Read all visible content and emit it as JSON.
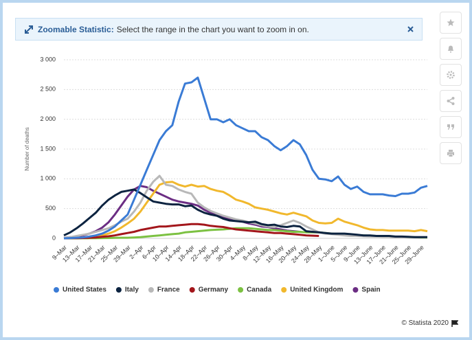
{
  "banner": {
    "title": "Zoomable Statistic:",
    "text": "Select the range in the chart you want to zoom in on."
  },
  "footer": {
    "credit": "© Statista 2020"
  },
  "chart_data": {
    "type": "line",
    "ylabel": "Number of deaths",
    "categories": [
      "9–Mar",
      null,
      "13–Mar",
      null,
      "17–Mar",
      null,
      "21–Mar",
      null,
      "25–Mar",
      null,
      "29–Mar",
      null,
      "2–Apr",
      null,
      "6–Apr",
      null,
      "10–Apr",
      null,
      "14–Apr",
      null,
      "18–Apr",
      null,
      "22–Apr",
      null,
      "26–Apr",
      null,
      "30–Apr",
      null,
      "4–May",
      null,
      "8–May",
      null,
      "12–May",
      null,
      "16–May",
      null,
      "20–May",
      null,
      "24–May",
      null,
      "28–May",
      null,
      "1–June",
      null,
      "5–June",
      null,
      "9–June",
      null,
      "13–June",
      null,
      "17–June",
      null,
      "21–June",
      null,
      "25–June",
      null,
      "29–June",
      null
    ],
    "ylim": [
      0,
      3000
    ],
    "yticks": [
      0,
      500,
      {
        "value": 1000,
        "label": "1 000"
      },
      {
        "value": 1500,
        "label": "1 500"
      },
      {
        "value": 2000,
        "label": "2 000"
      },
      {
        "value": 2500,
        "label": "2 500"
      },
      {
        "value": 3000,
        "label": "3 000"
      }
    ],
    "grid": true,
    "legend": "bottom",
    "series": [
      {
        "name": "United States",
        "color": "#3a7bd5",
        "values": [
          0,
          5,
          10,
          15,
          30,
          50,
          80,
          130,
          200,
          300,
          400,
          650,
          900,
          1150,
          1400,
          1650,
          1800,
          1900,
          2300,
          2600,
          2620,
          2700,
          2350,
          2000,
          2000,
          1950,
          2000,
          1900,
          1850,
          1800,
          1800,
          1700,
          1650,
          1550,
          1480,
          1550,
          1650,
          1580,
          1400,
          1150,
          1000,
          990,
          960,
          1040,
          900,
          830,
          870,
          780,
          740,
          740,
          740,
          720,
          710,
          750,
          750,
          770,
          850,
          880
        ]
      },
      {
        "name": "Italy",
        "color": "#0c2340",
        "values": [
          50,
          100,
          170,
          250,
          340,
          430,
          550,
          650,
          720,
          780,
          800,
          820,
          760,
          690,
          620,
          600,
          580,
          570,
          570,
          540,
          550,
          480,
          430,
          400,
          380,
          330,
          300,
          290,
          280,
          270,
          280,
          240,
          220,
          230,
          200,
          190,
          210,
          200,
          120,
          110,
          100,
          90,
          80,
          80,
          80,
          70,
          60,
          50,
          50,
          40,
          40,
          40,
          30,
          30,
          25,
          20,
          20,
          20
        ]
      },
      {
        "name": "France",
        "color": "#b8b8b8",
        "values": [
          10,
          20,
          40,
          60,
          80,
          110,
          140,
          170,
          220,
          280,
          330,
          450,
          600,
          800,
          950,
          1050,
          900,
          880,
          820,
          780,
          750,
          600,
          520,
          460,
          420,
          380,
          350,
          320,
          300,
          270,
          250,
          220,
          200,
          190,
          220,
          260,
          300,
          260,
          200,
          150,
          100,
          80,
          70,
          60,
          50,
          40,
          40,
          35,
          30,
          30,
          25,
          25,
          20,
          20,
          20,
          20,
          20,
          20
        ]
      },
      {
        "name": "Germany",
        "color": "#a3161b",
        "values": [
          0,
          2,
          4,
          6,
          10,
          15,
          25,
          35,
          50,
          70,
          90,
          110,
          140,
          160,
          180,
          200,
          200,
          210,
          220,
          230,
          240,
          240,
          230,
          210,
          200,
          190,
          170,
          150,
          140,
          130,
          120,
          110,
          100,
          90,
          90,
          80,
          70,
          60,
          50,
          45,
          40,
          null,
          null,
          null,
          null,
          null,
          null,
          null,
          null,
          null,
          null,
          null,
          null,
          null,
          null,
          null,
          null,
          null
        ]
      },
      {
        "name": "Canada",
        "color": "#7cc142",
        "values": [
          0,
          0,
          0,
          1,
          2,
          3,
          5,
          6,
          8,
          10,
          10,
          15,
          20,
          30,
          40,
          50,
          60,
          70,
          80,
          100,
          110,
          120,
          130,
          140,
          145,
          150,
          160,
          170,
          170,
          170,
          160,
          150,
          140,
          140,
          130,
          120,
          110,
          110,
          100,
          100,
          100,
          90,
          80,
          70,
          60,
          60,
          55,
          50,
          45,
          40,
          35,
          30,
          25,
          25,
          20,
          20,
          15,
          15
        ]
      },
      {
        "name": "United Kingdom",
        "color": "#f1b82d",
        "values": [
          0,
          0,
          5,
          10,
          20,
          30,
          50,
          80,
          120,
          180,
          250,
          330,
          450,
          600,
          750,
          900,
          940,
          950,
          900,
          870,
          900,
          870,
          880,
          830,
          800,
          780,
          720,
          650,
          620,
          580,
          520,
          500,
          480,
          450,
          420,
          400,
          430,
          400,
          370,
          300,
          260,
          250,
          260,
          330,
          280,
          250,
          220,
          180,
          150,
          140,
          140,
          130,
          130,
          130,
          130,
          120,
          140,
          120
        ]
      },
      {
        "name": "Spain",
        "color": "#6b2d83",
        "values": [
          10,
          20,
          30,
          50,
          80,
          120,
          180,
          270,
          400,
          550,
          700,
          820,
          880,
          860,
          800,
          750,
          700,
          650,
          620,
          600,
          580,
          550,
          480,
          430,
          380,
          350,
          330,
          300,
          280,
          250,
          230,
          200,
          190,
          170,
          150,
          130,
          120,
          110,
          null,
          null,
          null,
          null,
          null,
          null,
          null,
          null,
          null,
          null,
          null,
          null,
          null,
          null,
          null,
          null,
          null,
          null,
          null,
          null
        ]
      }
    ]
  }
}
